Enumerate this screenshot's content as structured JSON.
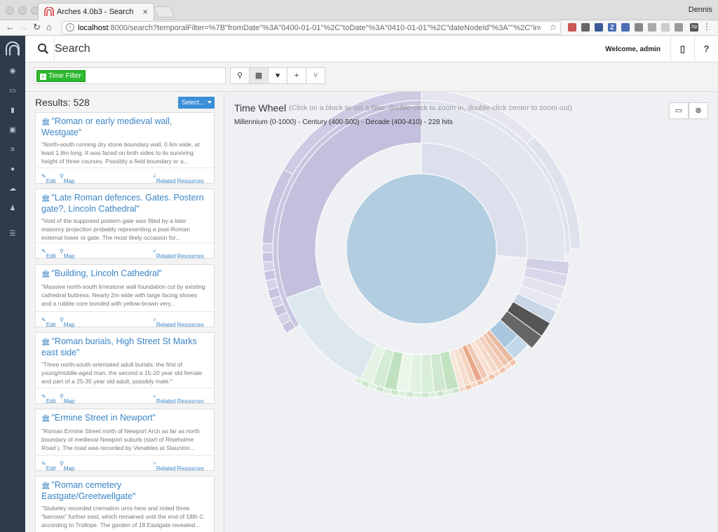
{
  "browser": {
    "tab_title": "Arches 4.0b3 - Search",
    "user": "Dennis",
    "url_host": "localhost",
    "url_rest": ":8000/search?temporalFilter=%7B\"fromDate\"%3A\"0400-01-01\"%2C\"toDate\"%3A\"0410-01-01\"%2C\"dateNodeId\"%3A\"\"%2C\"inverted..."
  },
  "header": {
    "title": "Search",
    "welcome": "Welcome, admin",
    "help": "?"
  },
  "filter": {
    "tag_label": "Time Filter"
  },
  "results": {
    "count_label": "Results: 528",
    "select_label": "Select...",
    "edit_label": "Edit",
    "map_label": "Map",
    "related_label": "Related Resources",
    "items": [
      {
        "title": "\"Roman or early medieval wall, Westgate\"",
        "desc": "\"North-south running dry stone boundary wall, 0.6m wide, at least 1.8m long. It was faced on both sides to its surviving height of three courses. Possibly a field boundary or a..."
      },
      {
        "title": "\"Late Roman defences. Gates. Postern gate?, Lincoln Cathedral\"",
        "desc": "\"Void of the supposed postern gate was filled by a later masonry projection probably representing a post-Roman external tower or gate. The most likely occasion for..."
      },
      {
        "title": "\"Building, Lincoln Cathedral\"",
        "desc": "\"Massive north-south limestone wall foundation cut by existing cathedral buttress. Nearly 2m wide with large facing stones and a rubble core bonded with yellow-brown very..."
      },
      {
        "title": "\"Roman burials, High Street St Marks east side\"",
        "desc": "\"Three north-south orientated adult burials, the first of young/middle-aged man, the second a 15-20 year old female and part of a 25-35 year old adult, possibly male.\""
      },
      {
        "title": "\"Ermine Street in Newport\"",
        "desc": "\"Roman Ermine Street north of Newport Arch as far as north boundary of medieval Newport suburb (start of Riseholme Road ). The road was recorded by Venables at Staunton..."
      },
      {
        "title": "\"Roman cemetery Eastgate/Greetwellgate\"",
        "desc": "\"Stukeley recorded cremation urns here and noted three \"barrows\" further east, which remained until the end of 18th C according to Trollope. The garden of 18 Eastgate revealed..."
      }
    ]
  },
  "timewheel": {
    "title": "Time Wheel",
    "hint": "(Click on a block to set a filter, double-click to zoom in, double-click center to zoom out)",
    "crumb": "Millennium (0-1000) - Century (400-500) - Decade (400-410) - 228 hits"
  },
  "colors": {
    "purple": "#b4b4d4",
    "center": "#b3cde0",
    "green": "#a8d8a8",
    "orange": "#f0b090",
    "dark": "#555555",
    "blue": "#9ec4e0"
  }
}
